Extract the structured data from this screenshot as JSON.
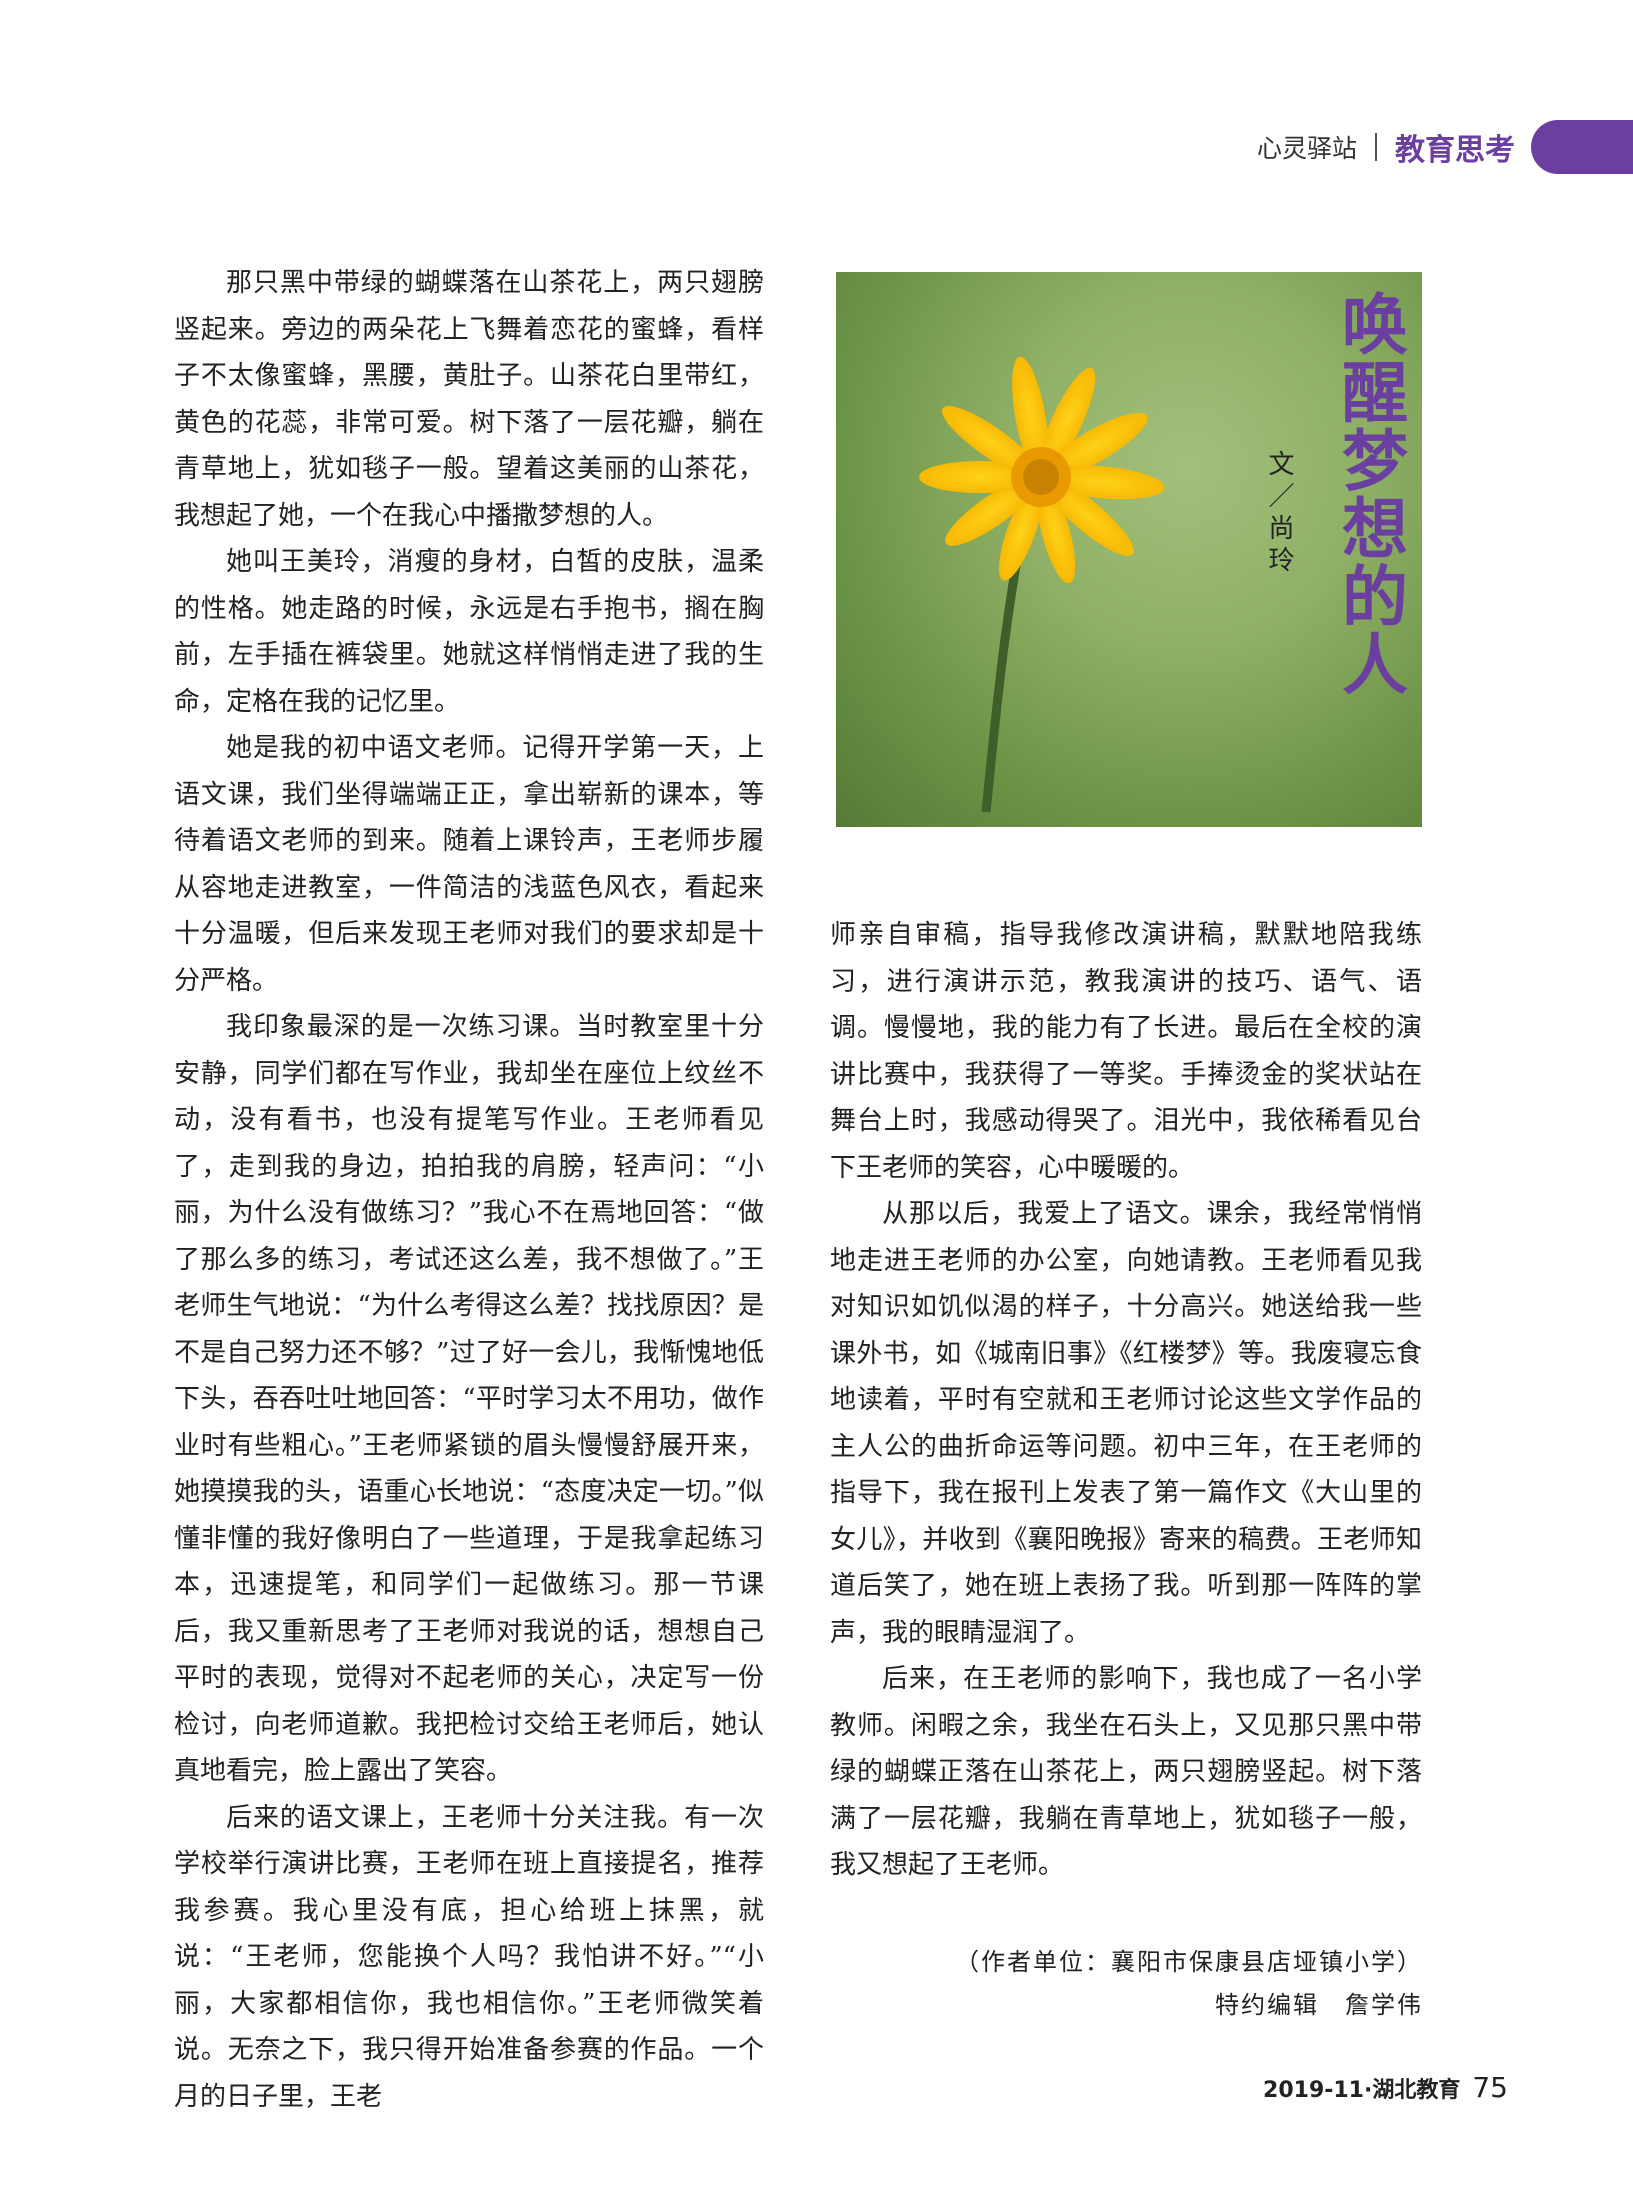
{
  "header": {
    "section": "心灵驿站",
    "column": "教育思考"
  },
  "article": {
    "title": "唤醒梦想的人",
    "byline": "文／尚玲",
    "left_paragraphs": [
      "那只黑中带绿的蝴蝶落在山茶花上，两只翅膀竖起来。旁边的两朵花上飞舞着恋花的蜜蜂，看样子不太像蜜蜂，黑腰，黄肚子。山茶花白里带红，黄色的花蕊，非常可爱。树下落了一层花瓣，躺在青草地上，犹如毯子一般。望着这美丽的山茶花，我想起了她，一个在我心中播撒梦想的人。",
      "她叫王美玲，消瘦的身材，白皙的皮肤，温柔的性格。她走路的时候，永远是右手抱书，搁在胸前，左手插在裤袋里。她就这样悄悄走进了我的生命，定格在我的记忆里。",
      "她是我的初中语文老师。记得开学第一天，上语文课，我们坐得端端正正，拿出崭新的课本，等待着语文老师的到来。随着上课铃声，王老师步履从容地走进教室，一件简洁的浅蓝色风衣，看起来十分温暖，但后来发现王老师对我们的要求却是十分严格。",
      "我印象最深的是一次练习课。当时教室里十分安静，同学们都在写作业，我却坐在座位上纹丝不动，没有看书，也没有提笔写作业。王老师看见了，走到我的身边，拍拍我的肩膀，轻声问：“小丽，为什么没有做练习？”我心不在焉地回答：“做了那么多的练习，考试还这么差，我不想做了。”王老师生气地说：“为什么考得这么差？找找原因？是不是自己努力还不够？”过了好一会儿，我惭愧地低下头，吞吞吐吐地回答：“平时学习太不用功，做作业时有些粗心。”王老师紧锁的眉头慢慢舒展开来，她摸摸我的头，语重心长地说：“态度决定一切。”似懂非懂的我好像明白了一些道理，于是我拿起练习本，迅速提笔，和同学们一起做练习。那一节课后，我又重新思考了王老师对我说的话，想想自己平时的表现，觉得对不起老师的关心，决定写一份检讨，向老师道歉。我把检讨交给王老师后，她认真地看完，脸上露出了笑容。",
      "后来的语文课上，王老师十分关注我。有一次学校举行演讲比赛，王老师在班上直接提名，推荐我参赛。我心里没有底，担心给班上抹黑，就说：“王老师，您能换个人吗？我怕讲不好。”“小丽，大家都相信你，我也相信你。”王老师微笑着说。无奈之下，我只得开始准备参赛的作品。一个月的日子里，王老"
    ],
    "right_paragraphs": [
      "师亲自审稿，指导我修改演讲稿，默默地陪我练习，进行演讲示范，教我演讲的技巧、语气、语调。慢慢地，我的能力有了长进。最后在全校的演讲比赛中，我获得了一等奖。手捧烫金的奖状站在舞台上时，我感动得哭了。泪光中，我依稀看见台下王老师的笑容，心中暖暖的。",
      "从那以后，我爱上了语文。课余，我经常悄悄地走进王老师的办公室，向她请教。王老师看见我对知识如饥似渴的样子，十分高兴。她送给我一些课外书，如《城南旧事》《红楼梦》等。我废寝忘食地读着，平时有空就和王老师讨论这些文学作品的主人公的曲折命运等问题。初中三年，在王老师的指导下，我在报刊上发表了第一篇作文《大山里的女儿》，并收到《襄阳晚报》寄来的稿费。王老师知道后笑了，她在班上表扬了我。听到那一阵阵的掌声，我的眼睛湿润了。",
      "后来，在王老师的影响下，我也成了一名小学教师。闲暇之余，我坐在石头上，又见那只黑中带绿的蝴蝶正落在山茶花上，两只翅膀竖起。树下落满了一层花瓣，我躺在青草地上，犹如毯子一般，我又想起了王老师。"
    ],
    "author_unit": "（作者单位：襄阳市保康县店垭镇小学）",
    "editor": "特约编辑　詹学伟"
  },
  "footer": {
    "publication": "2019-11·湖北教育",
    "page_number": "75"
  }
}
